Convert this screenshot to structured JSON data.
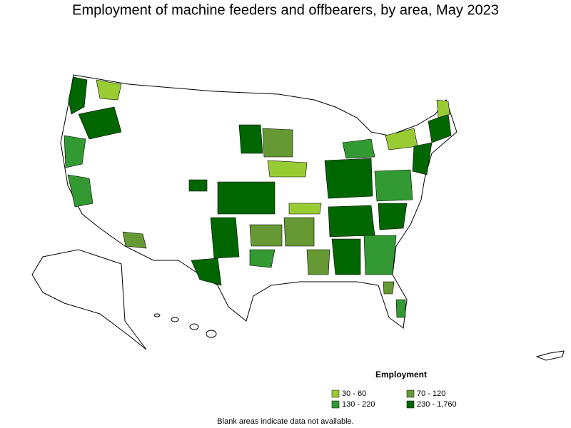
{
  "title": "Employment of machine feeders and offbearers, by area, May 2023",
  "legend": {
    "title": "Employment",
    "items": [
      {
        "label": "30 - 60",
        "color": "#99cc33"
      },
      {
        "label": "70 - 120",
        "color": "#669933"
      },
      {
        "label": "130 - 220",
        "color": "#339933"
      },
      {
        "label": "230 - 1,760",
        "color": "#006600"
      }
    ]
  },
  "footnote": "Blank areas indicate data not available."
}
